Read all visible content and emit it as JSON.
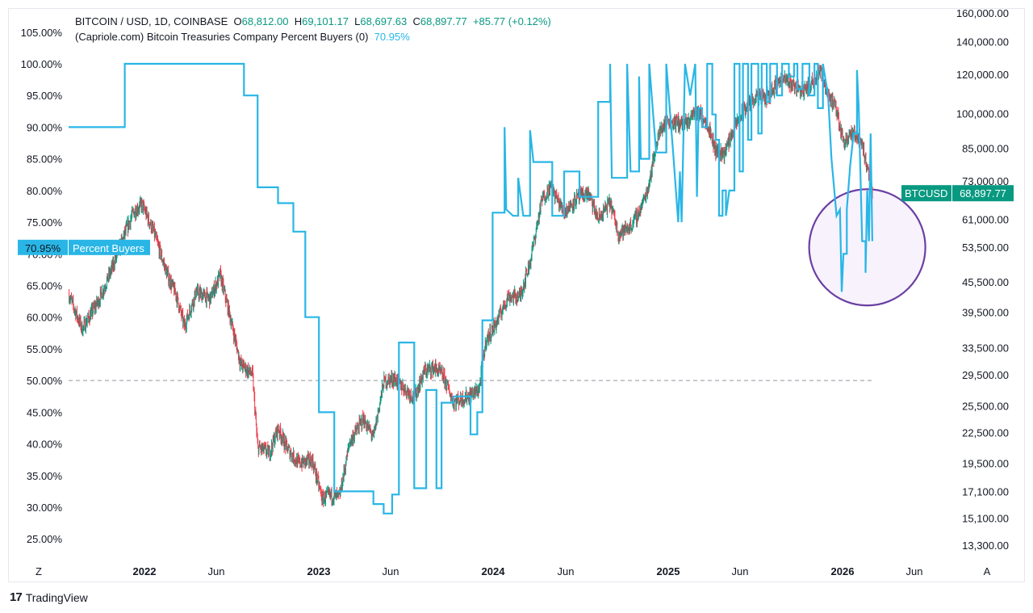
{
  "legend": {
    "symbol": "BITCOIN / USD, 1D, COINBASE",
    "o_label": "O",
    "o_value": "68,812.00",
    "h_label": "H",
    "h_value": "69,101.17",
    "l_label": "L",
    "l_value": "68,697.63",
    "c_label": "C",
    "c_value": "68,897.77",
    "change": "+85.77 (+0.12%)",
    "indicator": "(Capriole.com) Bitcoin Treasuries Company Percent Buyers (0)",
    "indicator_value": "70.95%"
  },
  "footer": {
    "brand": "TradingView",
    "logo": "17"
  },
  "colors": {
    "btc_up": "#089981",
    "btc_down": "#f23645",
    "indicator": "#29b6e6",
    "btc_tag": "#089981",
    "circle_stroke": "#6a3fa3",
    "circle_fill": "#f1eafa"
  },
  "chart_data": {
    "type": "line",
    "title": "BITCOIN / USD, 1D, COINBASE",
    "left_axis": {
      "ticks": [
        "105.00%",
        "100.00%",
        "95.00%",
        "90.00%",
        "85.00%",
        "80.00%",
        "75.00%",
        "70.00%",
        "65.00%",
        "60.00%",
        "55.00%",
        "50.00%",
        "45.00%",
        "40.00%",
        "35.00%",
        "30.00%",
        "25.00%"
      ],
      "range": [
        22.5,
        107
      ]
    },
    "right_axis": {
      "ticks": [
        "160,000.00",
        "140,000.00",
        "120,000.00",
        "100,000.00",
        "85,000.00",
        "73,000.00",
        "61,000.00",
        "53,500.00",
        "45,500.00",
        "39,500.00",
        "33,500.00",
        "29,500.00",
        "25,500.00",
        "22,500.00",
        "19,500.00",
        "17,100.00",
        "15,100.00",
        "13,300.00"
      ],
      "scale": "log"
    },
    "x_axis": {
      "ticks": [
        "Z",
        "2022",
        "Jun",
        "2023",
        "Jun",
        "2024",
        "Jun",
        "2025",
        "Jun",
        "2026",
        "Jun",
        "A"
      ],
      "bold": [
        "2022",
        "2023",
        "2024",
        "2025",
        "2026"
      ],
      "range": [
        2021.37,
        2026.55
      ]
    },
    "reference_line": {
      "value": 50,
      "style": "dashed"
    },
    "series": [
      {
        "name": "Percent Buyers",
        "axis": "left",
        "value_tag": "70.95%",
        "tag_label": "Percent Buyers",
        "points": [
          [
            2021.37,
            90
          ],
          [
            2021.7,
            90
          ],
          [
            2021.7,
            100
          ],
          [
            2022.4,
            100
          ],
          [
            2022.4,
            95
          ],
          [
            2022.48,
            95
          ],
          [
            2022.48,
            80.5
          ],
          [
            2022.6,
            80.5
          ],
          [
            2022.6,
            78
          ],
          [
            2022.69,
            78
          ],
          [
            2022.69,
            73.5
          ],
          [
            2022.76,
            73.5
          ],
          [
            2022.76,
            60
          ],
          [
            2022.84,
            60
          ],
          [
            2022.84,
            45
          ],
          [
            2022.93,
            45
          ],
          [
            2022.93,
            32.5
          ],
          [
            2023.16,
            32.5
          ],
          [
            2023.16,
            30.5
          ],
          [
            2023.22,
            30.5
          ],
          [
            2023.22,
            29
          ],
          [
            2023.27,
            29
          ],
          [
            2023.27,
            32
          ],
          [
            2023.31,
            32
          ],
          [
            2023.31,
            56
          ],
          [
            2023.4,
            56
          ],
          [
            2023.4,
            33
          ],
          [
            2023.47,
            33
          ],
          [
            2023.47,
            48.5
          ],
          [
            2023.53,
            48.5
          ],
          [
            2023.53,
            33
          ],
          [
            2023.56,
            33
          ],
          [
            2023.56,
            46.5
          ],
          [
            2023.63,
            46.5
          ],
          [
            2023.63,
            47.5
          ],
          [
            2023.73,
            47.5
          ],
          [
            2023.73,
            41.5
          ],
          [
            2023.77,
            41.5
          ],
          [
            2023.77,
            45
          ],
          [
            2023.8,
            45
          ],
          [
            2023.8,
            59.5
          ],
          [
            2023.86,
            59.5
          ],
          [
            2023.86,
            76.5
          ],
          [
            2023.93,
            76.5
          ],
          [
            2023.93,
            90
          ],
          [
            2023.94,
            77
          ],
          [
            2023.98,
            76
          ],
          [
            2024.01,
            76
          ],
          [
            2024.01,
            82
          ],
          [
            2024.04,
            76
          ],
          [
            2024.08,
            76
          ],
          [
            2024.08,
            89.5
          ],
          [
            2024.1,
            84.5
          ],
          [
            2024.21,
            84.5
          ],
          [
            2024.21,
            76
          ],
          [
            2024.28,
            76
          ],
          [
            2024.28,
            83
          ],
          [
            2024.37,
            83
          ],
          [
            2024.37,
            79
          ],
          [
            2024.48,
            79
          ],
          [
            2024.48,
            94
          ],
          [
            2024.55,
            94
          ],
          [
            2024.55,
            100
          ],
          [
            2024.56,
            82
          ],
          [
            2024.65,
            82
          ],
          [
            2024.65,
            100
          ],
          [
            2024.67,
            83
          ],
          [
            2024.72,
            83
          ],
          [
            2024.72,
            98
          ],
          [
            2024.73,
            85
          ],
          [
            2024.78,
            85
          ],
          [
            2024.78,
            100
          ],
          [
            2024.82,
            86
          ],
          [
            2024.88,
            86
          ],
          [
            2024.88,
            100
          ],
          [
            2024.92,
            86
          ],
          [
            2024.95,
            75
          ],
          [
            2024.96,
            83
          ],
          [
            2024.97,
            75
          ],
          [
            2024.99,
            100
          ],
          [
            2025.02,
            95
          ],
          [
            2025.05,
            100
          ],
          [
            2025.06,
            79
          ],
          [
            2025.07,
            93
          ],
          [
            2025.09,
            93
          ],
          [
            2025.09,
            90
          ],
          [
            2025.12,
            90
          ],
          [
            2025.12,
            100
          ],
          [
            2025.15,
            100
          ],
          [
            2025.15,
            92
          ],
          [
            2025.17,
            92
          ],
          [
            2025.17,
            88
          ],
          [
            2025.19,
            88
          ],
          [
            2025.19,
            76
          ],
          [
            2025.21,
            76
          ],
          [
            2025.21,
            80
          ],
          [
            2025.23,
            80
          ],
          [
            2025.23,
            76
          ],
          [
            2025.25,
            80
          ],
          [
            2025.28,
            80
          ],
          [
            2025.28,
            100
          ],
          [
            2025.31,
            100
          ],
          [
            2025.31,
            83
          ],
          [
            2025.33,
            83
          ],
          [
            2025.33,
            100
          ],
          [
            2025.36,
            100
          ],
          [
            2025.36,
            88
          ],
          [
            2025.38,
            88
          ],
          [
            2025.38,
            100
          ],
          [
            2025.42,
            100
          ],
          [
            2025.42,
            89
          ],
          [
            2025.44,
            89
          ],
          [
            2025.44,
            100
          ],
          [
            2025.47,
            100
          ],
          [
            2025.47,
            94
          ],
          [
            2025.49,
            94
          ],
          [
            2025.49,
            100
          ],
          [
            2025.53,
            100
          ],
          [
            2025.53,
            95
          ],
          [
            2025.56,
            95
          ],
          [
            2025.56,
            100
          ],
          [
            2025.6,
            100
          ],
          [
            2025.6,
            98
          ],
          [
            2025.63,
            98
          ],
          [
            2025.63,
            100
          ],
          [
            2025.65,
            100
          ],
          [
            2025.65,
            96
          ],
          [
            2025.68,
            96
          ],
          [
            2025.68,
            100
          ],
          [
            2025.72,
            100
          ],
          [
            2025.72,
            95
          ],
          [
            2025.75,
            95
          ],
          [
            2025.75,
            100
          ],
          [
            2025.77,
            100
          ],
          [
            2025.77,
            93
          ],
          [
            2025.8,
            93
          ],
          [
            2025.8,
            100
          ],
          [
            2025.83,
            95
          ],
          [
            2025.85,
            85
          ],
          [
            2025.88,
            76
          ],
          [
            2025.9,
            77
          ],
          [
            2025.91,
            64
          ],
          [
            2025.92,
            70
          ],
          [
            2025.94,
            70
          ],
          [
            2025.94,
            77
          ],
          [
            2025.96,
            84
          ],
          [
            2025.98,
            89
          ],
          [
            2026.0,
            89
          ],
          [
            2026.0,
            99
          ],
          [
            2026.01,
            93
          ],
          [
            2026.03,
            72
          ],
          [
            2026.05,
            72
          ],
          [
            2026.05,
            67
          ],
          [
            2026.06,
            80
          ],
          [
            2026.07,
            72
          ],
          [
            2026.08,
            89
          ],
          [
            2026.09,
            72
          ]
        ]
      },
      {
        "name": "BTCUSD",
        "axis": "right",
        "value_tag": "68,897.77",
        "tag_label": "BTCUSD",
        "points": [
          [
            2021.37,
            43000
          ],
          [
            2021.45,
            36500
          ],
          [
            2021.55,
            42000
          ],
          [
            2021.62,
            48000
          ],
          [
            2021.7,
            57000
          ],
          [
            2021.75,
            63000
          ],
          [
            2021.8,
            65500
          ],
          [
            2021.87,
            57500
          ],
          [
            2021.95,
            47000
          ],
          [
            2022.0,
            43000
          ],
          [
            2022.05,
            37000
          ],
          [
            2022.12,
            43500
          ],
          [
            2022.2,
            42000
          ],
          [
            2022.26,
            47000
          ],
          [
            2022.32,
            38500
          ],
          [
            2022.38,
            31000
          ],
          [
            2022.45,
            29500
          ],
          [
            2022.48,
            21000
          ],
          [
            2022.55,
            20500
          ],
          [
            2022.6,
            23000
          ],
          [
            2022.65,
            21000
          ],
          [
            2022.72,
            19500
          ],
          [
            2022.8,
            19800
          ],
          [
            2022.86,
            16500
          ],
          [
            2022.9,
            16800
          ],
          [
            2022.96,
            16600
          ],
          [
            2023.02,
            21500
          ],
          [
            2023.1,
            24000
          ],
          [
            2023.16,
            22000
          ],
          [
            2023.22,
            28500
          ],
          [
            2023.28,
            29000
          ],
          [
            2023.35,
            27500
          ],
          [
            2023.4,
            26500
          ],
          [
            2023.46,
            30000
          ],
          [
            2023.52,
            30500
          ],
          [
            2023.57,
            29300
          ],
          [
            2023.63,
            26000
          ],
          [
            2023.7,
            26500
          ],
          [
            2023.78,
            27500
          ],
          [
            2023.82,
            34500
          ],
          [
            2023.88,
            37500
          ],
          [
            2023.95,
            42500
          ],
          [
            2024.02,
            42500
          ],
          [
            2024.08,
            50000
          ],
          [
            2024.15,
            67000
          ],
          [
            2024.2,
            71000
          ],
          [
            2024.28,
            63000
          ],
          [
            2024.35,
            67000
          ],
          [
            2024.42,
            69000
          ],
          [
            2024.48,
            61000
          ],
          [
            2024.55,
            66000
          ],
          [
            2024.6,
            57000
          ],
          [
            2024.67,
            59000
          ],
          [
            2024.72,
            63000
          ],
          [
            2024.77,
            70000
          ],
          [
            2024.83,
            90000
          ],
          [
            2024.88,
            97000
          ],
          [
            2024.93,
            96000
          ],
          [
            2025.0,
            95000
          ],
          [
            2025.05,
            102000
          ],
          [
            2025.12,
            96000
          ],
          [
            2025.17,
            84000
          ],
          [
            2025.22,
            83000
          ],
          [
            2025.28,
            94000
          ],
          [
            2025.35,
            103000
          ],
          [
            2025.4,
            108000
          ],
          [
            2025.47,
            107000
          ],
          [
            2025.55,
            118000
          ],
          [
            2025.62,
            115000
          ],
          [
            2025.68,
            111000
          ],
          [
            2025.72,
            114000
          ],
          [
            2025.78,
            122000
          ],
          [
            2025.83,
            110000
          ],
          [
            2025.88,
            101000
          ],
          [
            2025.92,
            88000
          ],
          [
            2025.97,
            91000
          ],
          [
            2026.02,
            89000
          ],
          [
            2026.06,
            78000
          ],
          [
            2026.09,
            68900
          ]
        ]
      }
    ],
    "annotations": [
      {
        "type": "circle",
        "label": "highlight",
        "x": 2026.06,
        "y_price": 53500
      }
    ]
  }
}
